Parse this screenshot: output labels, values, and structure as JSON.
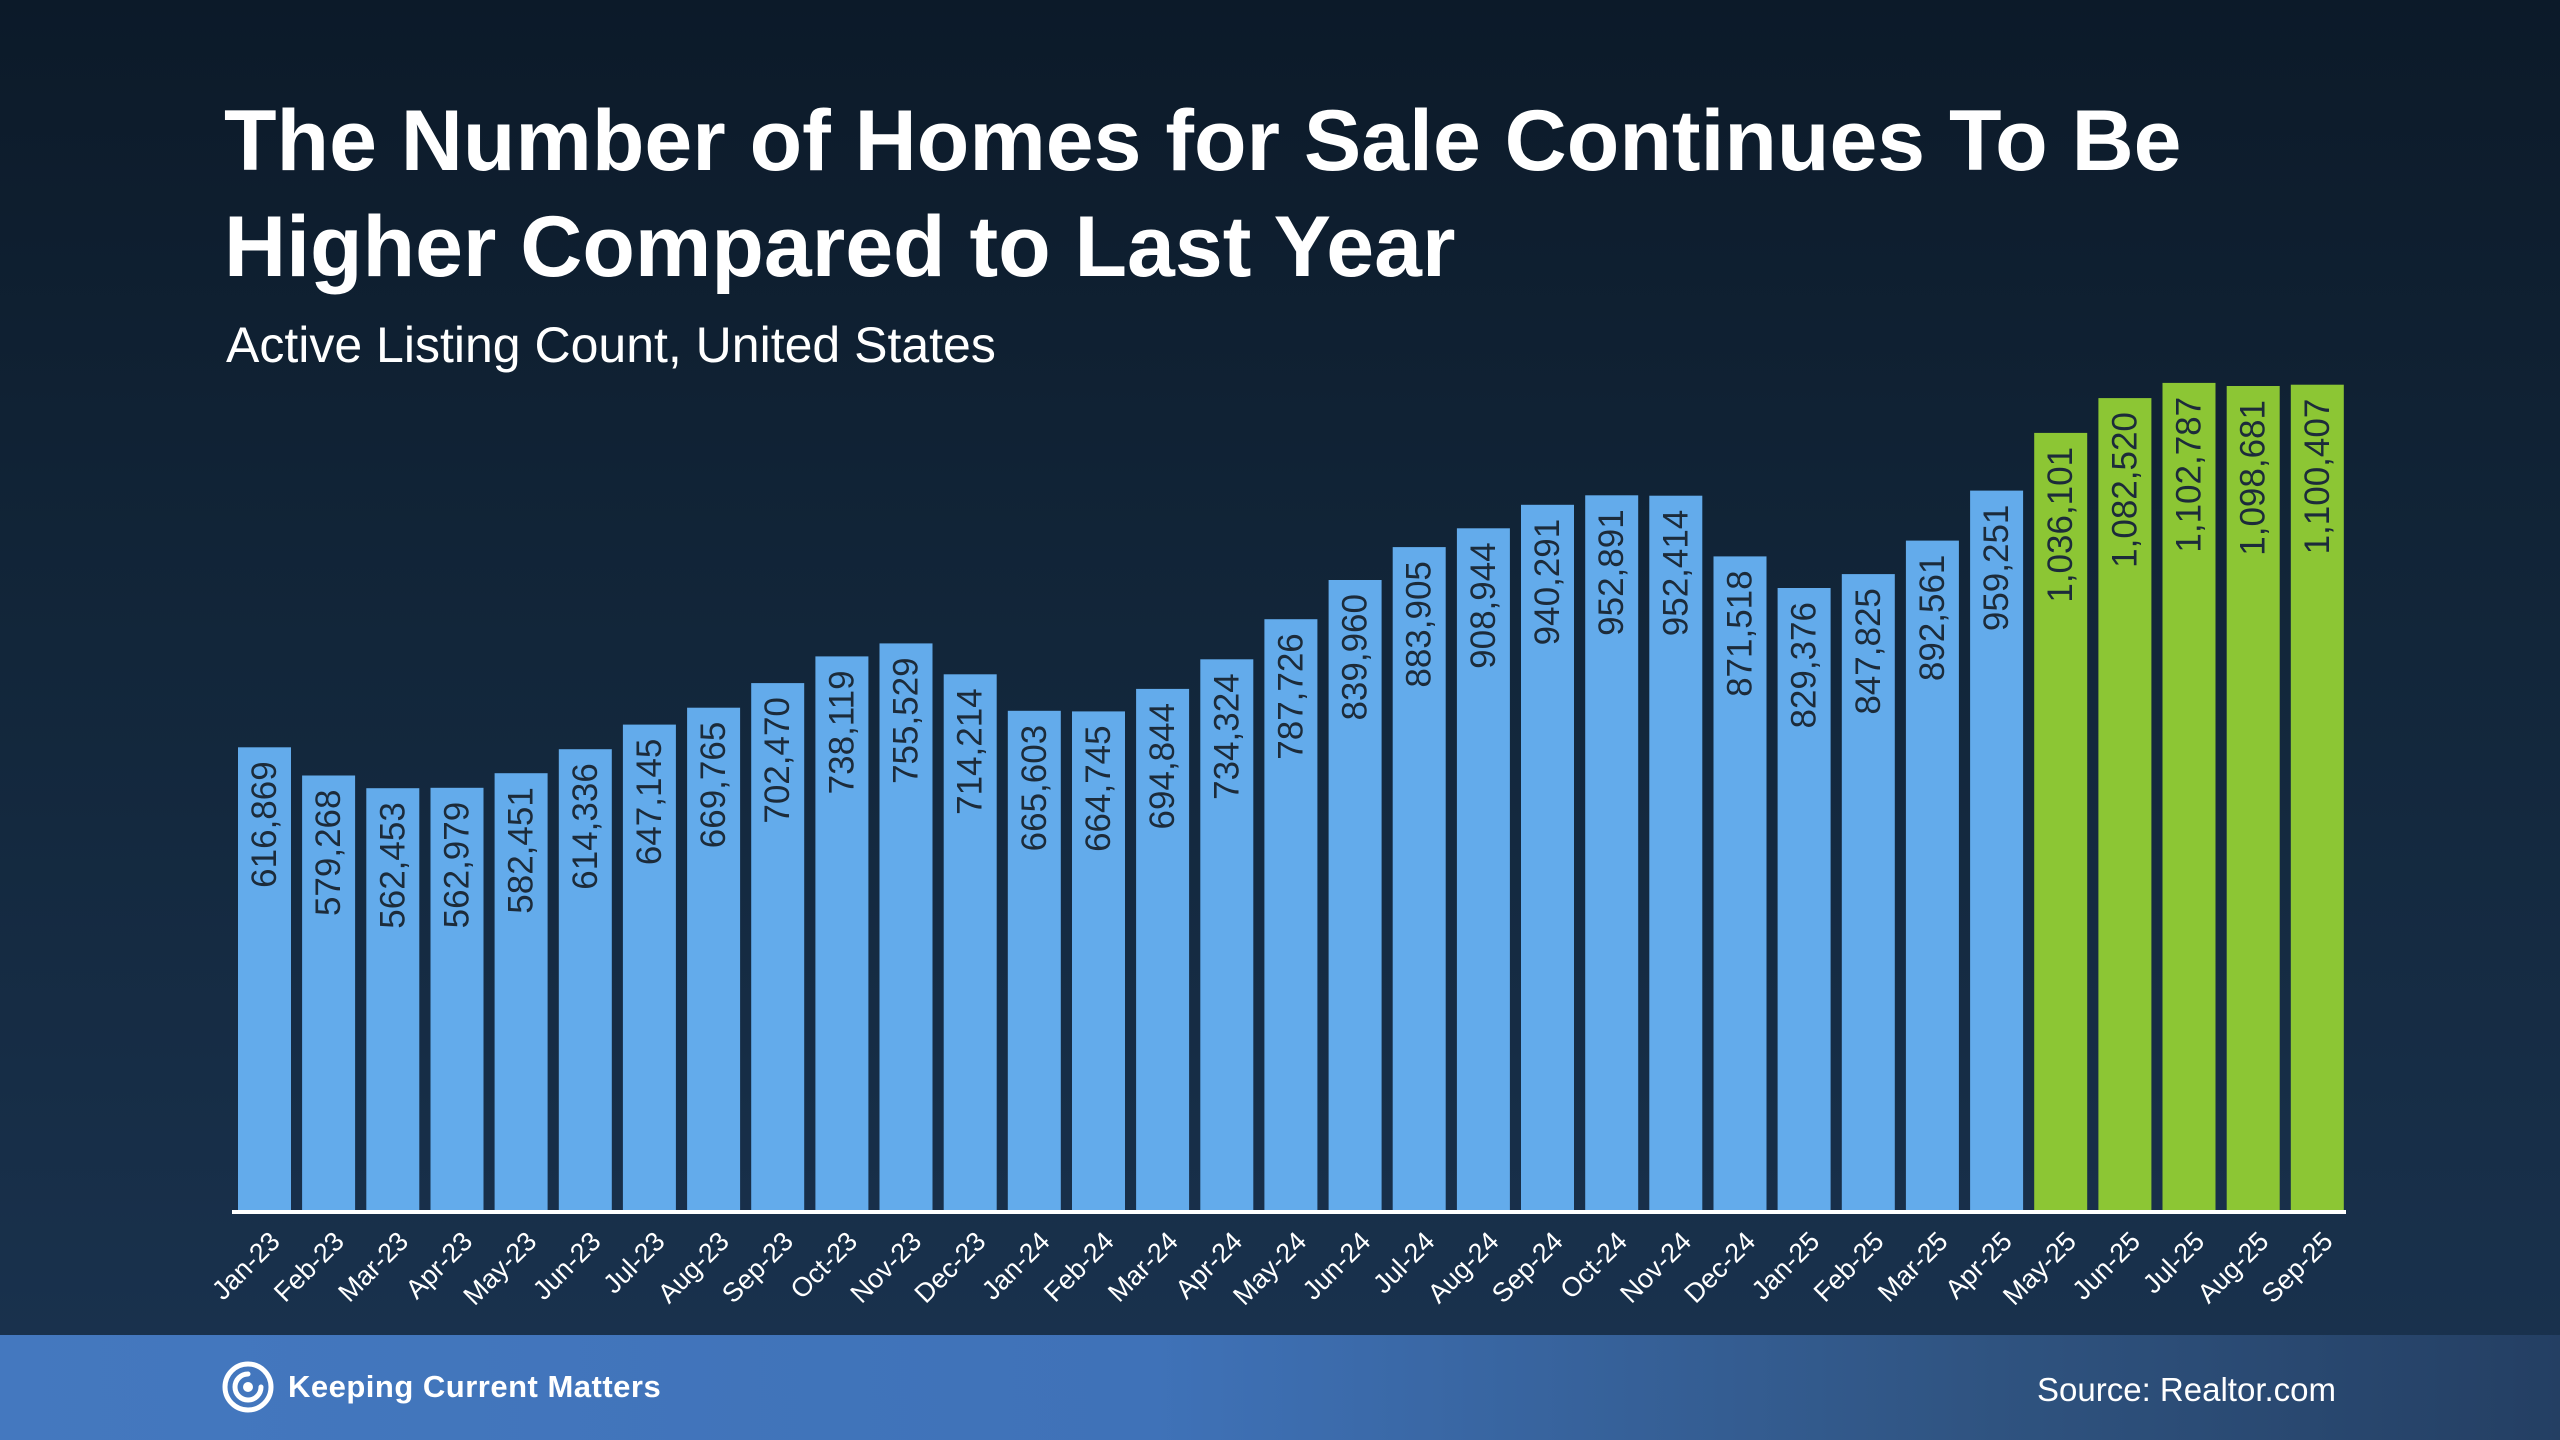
{
  "slide": {
    "title": "The Number of Homes for Sale Continues To Be Higher Compared to Last Year",
    "subtitle": "Active Listing Count, United States"
  },
  "footer": {
    "brand": "Keeping Current Matters",
    "source": "Source: Realtor.com"
  },
  "colors": {
    "background": "#0f2133",
    "bar_default": "#63abeb",
    "bar_highlight": "#8cc634",
    "bar_label": "#1c2b3a",
    "footer": "#3f72b8"
  },
  "chart_data": {
    "type": "bar",
    "title": "The Number of Homes for Sale Continues To Be Higher Compared to Last Year",
    "subtitle": "Active Listing Count, United States",
    "xlabel": "",
    "ylabel": "",
    "ylim": [
      0,
      1140000
    ],
    "grid": false,
    "categories": [
      "Jan-23",
      "Feb-23",
      "Mar-23",
      "Apr-23",
      "May-23",
      "Jun-23",
      "Jul-23",
      "Aug-23",
      "Sep-23",
      "Oct-23",
      "Nov-23",
      "Dec-23",
      "Jan-24",
      "Feb-24",
      "Mar-24",
      "Apr-24",
      "May-24",
      "Jun-24",
      "Jul-24",
      "Aug-24",
      "Sep-24",
      "Oct-24",
      "Nov-24",
      "Dec-24",
      "Jan-25",
      "Feb-25",
      "Mar-25",
      "Apr-25",
      "May-25",
      "Jun-25",
      "Jul-25",
      "Aug-25",
      "Sep-25"
    ],
    "values": [
      616869,
      579268,
      562453,
      562979,
      582451,
      614336,
      647145,
      669765,
      702470,
      738119,
      755529,
      714214,
      665603,
      664745,
      694844,
      734324,
      787726,
      839960,
      883905,
      908944,
      940291,
      952891,
      952414,
      871518,
      829376,
      847825,
      892561,
      959251,
      1036101,
      1082520,
      1102787,
      1098681,
      1100407
    ],
    "value_labels": [
      "616,869",
      "579,268",
      "562,453",
      "562,979",
      "582,451",
      "614,336",
      "647,145",
      "669,765",
      "702,470",
      "738,119",
      "755,529",
      "714,214",
      "665,603",
      "664,745",
      "694,844",
      "734,324",
      "787,726",
      "839,960",
      "883,905",
      "908,944",
      "940,291",
      "952,891",
      "952,414",
      "871,518",
      "829,376",
      "847,825",
      "892,561",
      "959,251",
      "1,036,101",
      "1,082,520",
      "1,102,787",
      "1,098,681",
      "1,100,407"
    ],
    "highlighted_categories": [
      "May-25",
      "Jun-25",
      "Jul-25",
      "Aug-25",
      "Sep-25"
    ]
  }
}
